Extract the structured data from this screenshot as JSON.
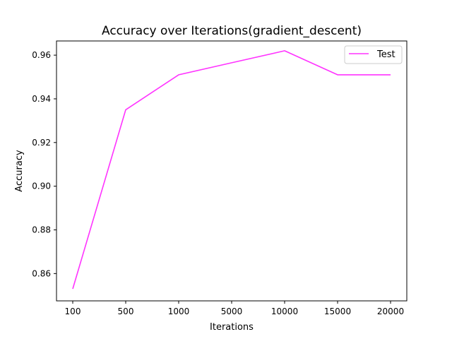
{
  "chart_data": {
    "type": "line",
    "title": "Accuracy over Iterations(gradient_descent)",
    "xlabel": "Iterations",
    "ylabel": "Accuracy",
    "categories": [
      "100",
      "500",
      "1000",
      "5000",
      "10000",
      "15000",
      "20000"
    ],
    "series": [
      {
        "name": "Test",
        "color": "#ff33ff",
        "values": [
          0.853,
          0.935,
          0.951,
          0.9565,
          0.962,
          0.951,
          0.951
        ]
      }
    ],
    "ylim": [
      0.8475,
      0.9665
    ],
    "yticks": [
      0.86,
      0.88,
      0.9,
      0.92,
      0.94,
      0.96
    ],
    "ytick_labels": [
      "0.86",
      "0.88",
      "0.90",
      "0.92",
      "0.94",
      "0.96"
    ],
    "grid": false,
    "legend": {
      "position": "top-right",
      "entries": [
        "Test"
      ]
    }
  }
}
